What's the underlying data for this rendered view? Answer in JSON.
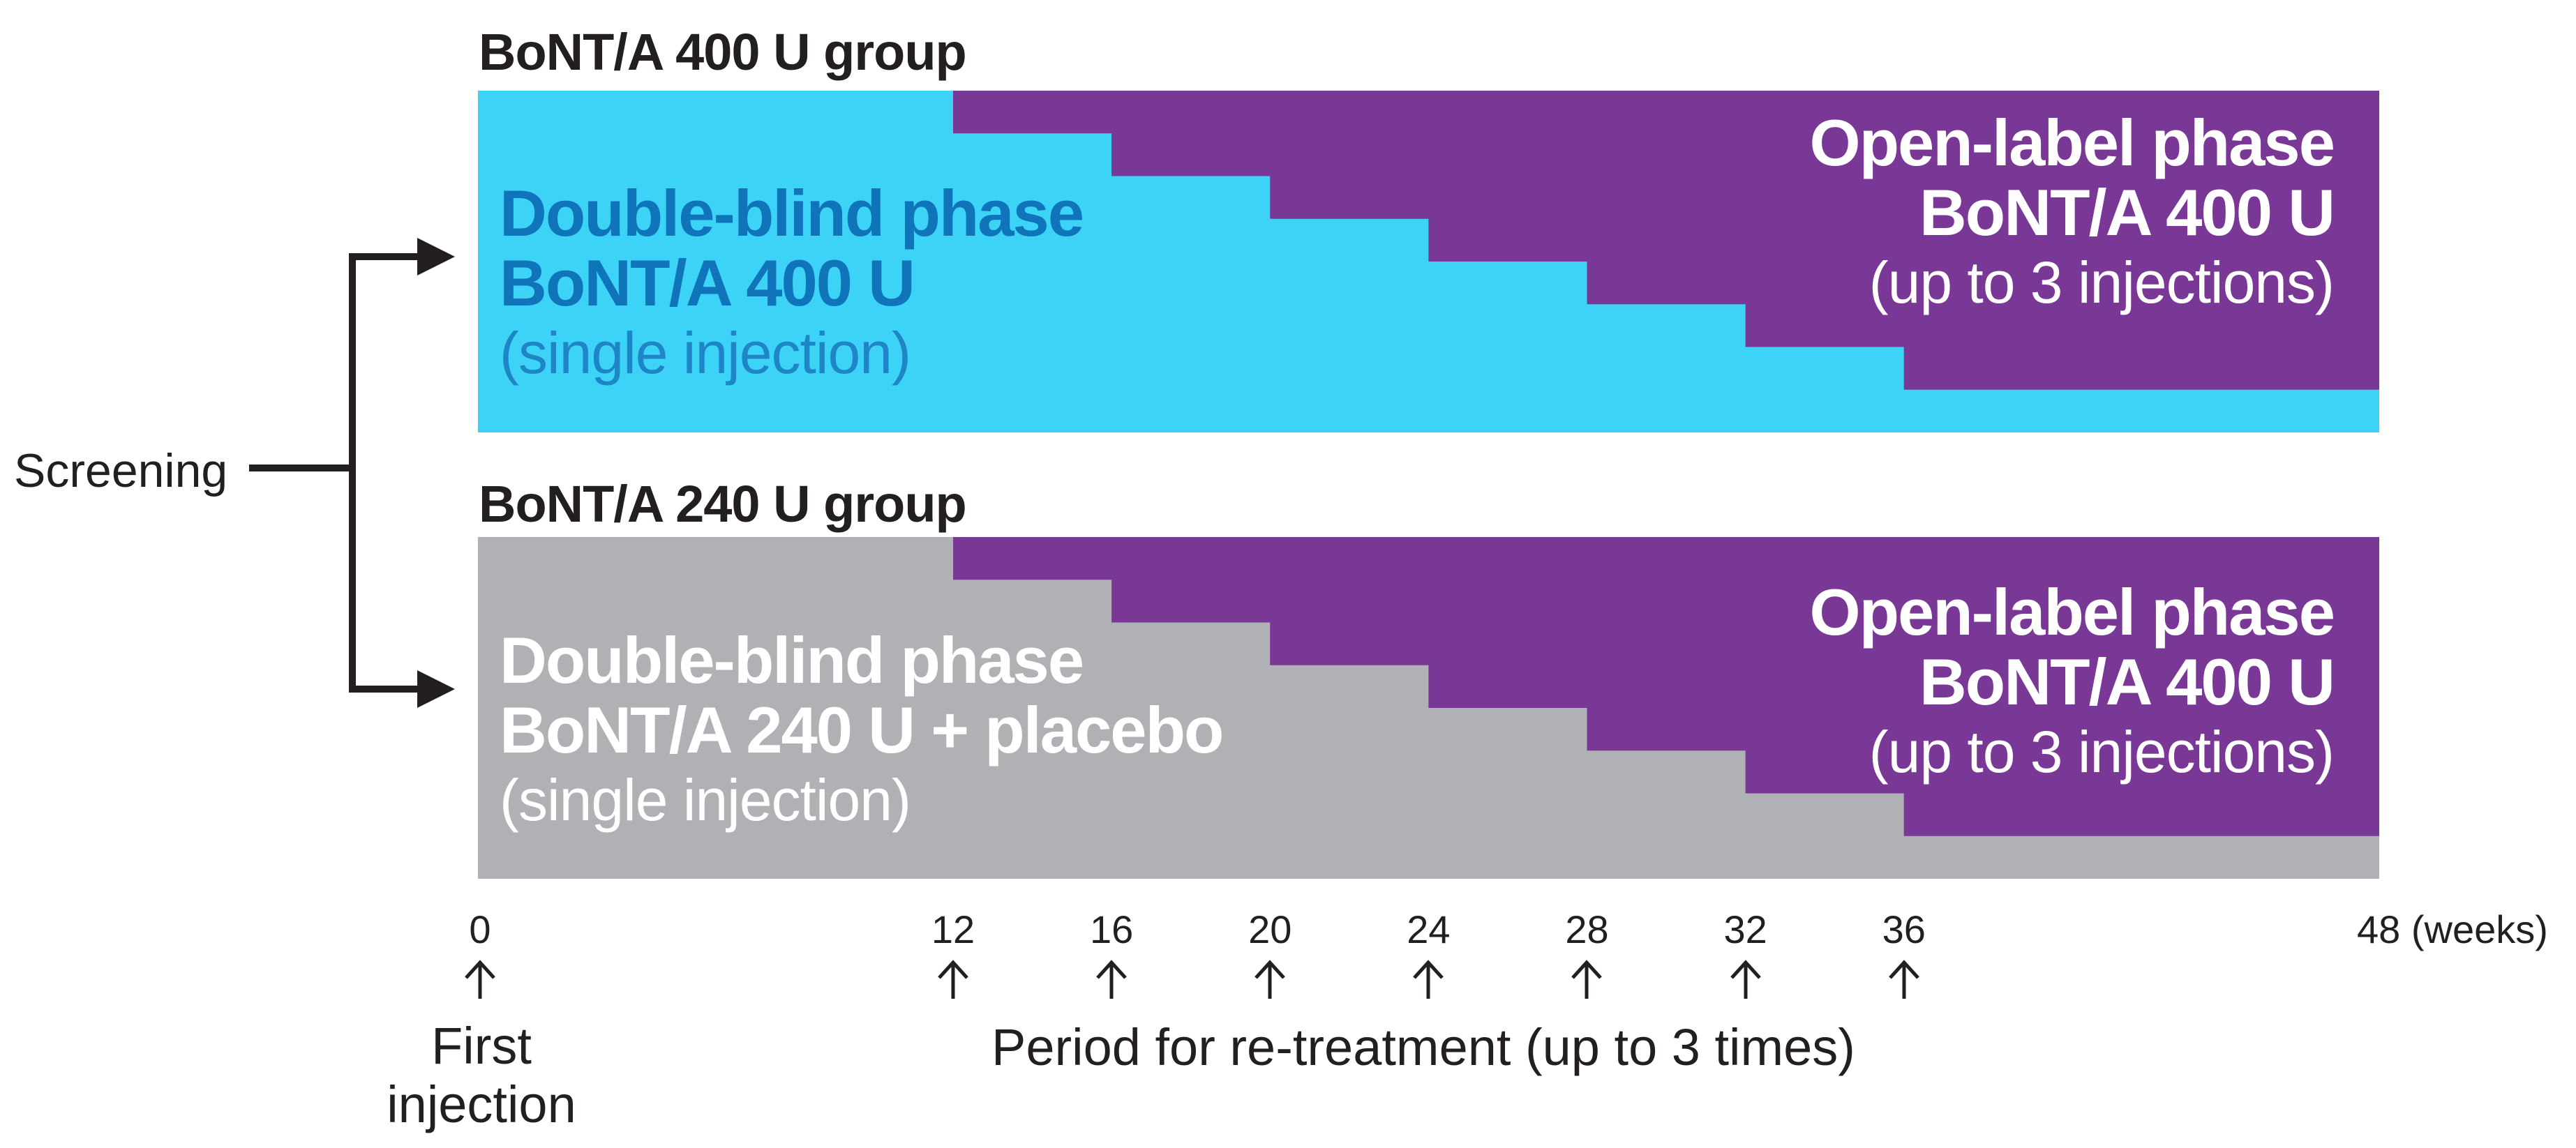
{
  "screening": {
    "label": "Screening"
  },
  "groups": [
    {
      "id": "bont400",
      "title": "BoNT/A 400 U group",
      "double_blind": {
        "line1": "Double-blind phase",
        "line2": "BoNT/A 400 U",
        "line3": "(single injection)"
      },
      "open_label": {
        "line1": "Open-label phase",
        "line2": "BoNT/A 400 U",
        "line3": "(up to 3 injections)"
      },
      "colors": {
        "base": "#3dd3f7",
        "db_text": "#0f74ba",
        "db_text_light": "#1e86c6",
        "ol_text": "#ffffff"
      }
    },
    {
      "id": "bont240",
      "title": "BoNT/A 240 U group",
      "double_blind": {
        "line1": "Double-blind phase",
        "line2": "BoNT/A 240 U + placebo",
        "line3": "(single injection)"
      },
      "open_label": {
        "line1": "Open-label phase",
        "line2": "BoNT/A 400 U",
        "line3": "(up to 3 injections)"
      },
      "colors": {
        "base": "#b0b1b4",
        "db_text": "#ffffff",
        "db_text_light": "#ffffff",
        "ol_text": "#ffffff"
      }
    }
  ],
  "open_label_color": "#7a3896",
  "ink_color": "#231f20",
  "timeline": {
    "ticks": [
      {
        "week": 0,
        "label": "0"
      },
      {
        "week": 12,
        "label": "12"
      },
      {
        "week": 16,
        "label": "16"
      },
      {
        "week": 20,
        "label": "20"
      },
      {
        "week": 24,
        "label": "24"
      },
      {
        "week": 28,
        "label": "28"
      },
      {
        "week": 32,
        "label": "32"
      },
      {
        "week": 36,
        "label": "36"
      }
    ],
    "end_label": "48 (weeks)",
    "first_injection_lines": [
      "First",
      "injection"
    ],
    "retreatment_label": "Period for re-treatment (up to 3 times)"
  }
}
